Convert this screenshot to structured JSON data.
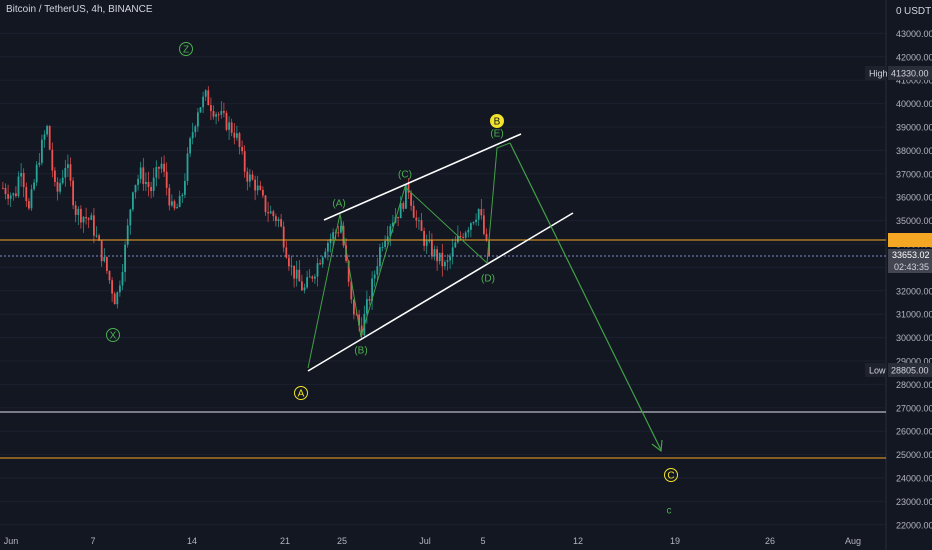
{
  "header": {
    "symbol_title": "Bitcoin / TetherUS, 4h, BINANCE",
    "currency": "USDT",
    "currency_lock": "0"
  },
  "colors": {
    "bg": "#131722",
    "up": "#26a69a",
    "down": "#ef5350",
    "wave": "#2e7d32",
    "wave_label": "#4caf50",
    "degree_label": "#f2e32b",
    "hline_orange": "#f5a623",
    "hline_white": "#e0e3eb",
    "channel": "#ffffff",
    "current_price_line": "#7e8ec6"
  },
  "axis": {
    "y_ticks": [
      "43000.00",
      "42000.00",
      "41000.00",
      "40000.00",
      "39000.00",
      "38000.00",
      "37000.00",
      "36000.00",
      "35000.00",
      "34000.00",
      "33000.00",
      "32000.00",
      "31000.00",
      "30000.00",
      "29000.00",
      "28000.00",
      "27000.00",
      "26000.00",
      "25000.00",
      "24000.00",
      "23000.00",
      "22000.00"
    ],
    "x_ticks": [
      "Jun",
      "7",
      "14",
      "21",
      "25",
      "Jul",
      "5",
      "12",
      "19",
      "26",
      "Aug"
    ],
    "high_label": "High",
    "high_value": "41330.00",
    "low_label": "Low",
    "low_value": "28805.00",
    "current_price": "33653.02",
    "countdown": "02:43:35"
  },
  "chart_data": {
    "type": "candlestick",
    "title": "Bitcoin / TetherUS, 4h, BINANCE",
    "y_range": [
      22000,
      44000
    ],
    "period_high": 41330.0,
    "period_low": 28805.0,
    "last_price": 33653.02,
    "horizontal_levels": [
      34300,
      27000,
      25000
    ],
    "elliott_labels": [
      {
        "text": "Z",
        "date": "2021-06-14",
        "price": 42400
      },
      {
        "text": "X",
        "date": "2021-06-08",
        "price": 30600
      },
      {
        "text": "A",
        "date": "2021-06-22",
        "price": 27800
      },
      {
        "text": "(A)",
        "date": "2021-06-24",
        "price": 35050
      },
      {
        "text": "(B)",
        "date": "2021-06-26",
        "price": 29700
      },
      {
        "text": "(C)",
        "date": "2021-06-29",
        "price": 37050
      },
      {
        "text": "(D)",
        "date": "2021-07-05",
        "price": 32700
      },
      {
        "text": "(E)",
        "date": "2021-07-05",
        "price": 38800
      },
      {
        "text": "B",
        "date": "2021-07-05",
        "price": 39200
      },
      {
        "text": "C",
        "date": "2021-07-18",
        "price": 24400
      },
      {
        "text": "c",
        "date": "2021-07-18",
        "price": 22900
      }
    ]
  }
}
